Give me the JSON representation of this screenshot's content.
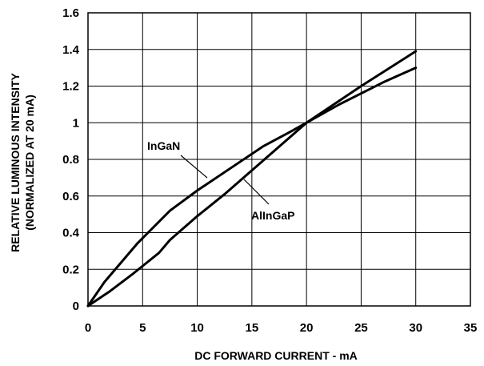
{
  "chart_data": {
    "type": "line",
    "xlabel": "DC FORWARD CURRENT - mA",
    "ylabel_lines": [
      "RELATIVE LUMINOUS INTENSITY",
      "(NORMALIZED AT 20 mA)"
    ],
    "xlim": [
      0,
      35
    ],
    "ylim": [
      0,
      1.6
    ],
    "x_ticks": [
      "0",
      "5",
      "10",
      "15",
      "20",
      "25",
      "30",
      "35"
    ],
    "y_ticks": [
      "0",
      "0.2",
      "0.4",
      "0.6",
      "0.8",
      "1",
      "1.2",
      "1.4",
      "1.6"
    ],
    "grid": true,
    "series": [
      {
        "name": "InGaN",
        "x": [
          0,
          1.5,
          4.5,
          7.5,
          10,
          13,
          16,
          18.5,
          20,
          23,
          27,
          30
        ],
        "y": [
          0,
          0.13,
          0.34,
          0.52,
          0.63,
          0.75,
          0.87,
          0.95,
          1.0,
          1.1,
          1.22,
          1.3
        ]
      },
      {
        "name": "AlInGaP",
        "x": [
          0,
          2,
          4,
          6.5,
          7.5,
          10,
          12.5,
          15,
          17.5,
          20,
          25,
          30
        ],
        "y": [
          0,
          0.08,
          0.17,
          0.29,
          0.36,
          0.49,
          0.61,
          0.74,
          0.87,
          1.0,
          1.2,
          1.39
        ]
      }
    ],
    "annotations": [
      {
        "text": "InGaN",
        "series": "InGaN"
      },
      {
        "text": "AlInGaP",
        "series": "AlInGaP"
      }
    ]
  }
}
